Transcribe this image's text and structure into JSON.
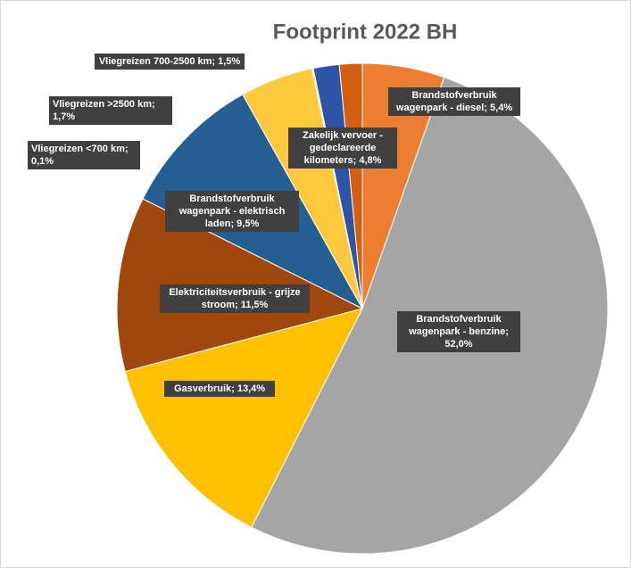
{
  "chart_data": {
    "type": "pie",
    "title": "Footprint 2022 BH",
    "values": [
      5.4,
      52.0,
      13.4,
      11.5,
      9.5,
      4.8,
      0.1,
      1.7,
      1.5
    ],
    "value_labels": [
      "Brandstofverbruik wagenpark - diesel; 5,4%",
      "Brandstofverbruik wagenpark - benzine; 52,0%",
      "Gasverbruik; 13,4%",
      "Elektriciteitsverbruik - grijze stroom; 11,5%",
      "Brandstofverbruik wagenpark - elektrisch laden; 9,5%",
      "Zakelijk vervoer - gedeclareerde kilometers; 4,8%",
      "Vliegreizen <700 km; 0,1%",
      "Vliegreizen >2500 km; 1,7%",
      "Vliegreizen 700-2500 km; 1,5%"
    ],
    "colors": [
      "#ED7D31",
      "#A5A5A5",
      "#FFC000",
      "#9E480E",
      "#255E91",
      "#FFC83D",
      "#F2D675",
      "#2E54A6",
      "#D35F12"
    ]
  }
}
